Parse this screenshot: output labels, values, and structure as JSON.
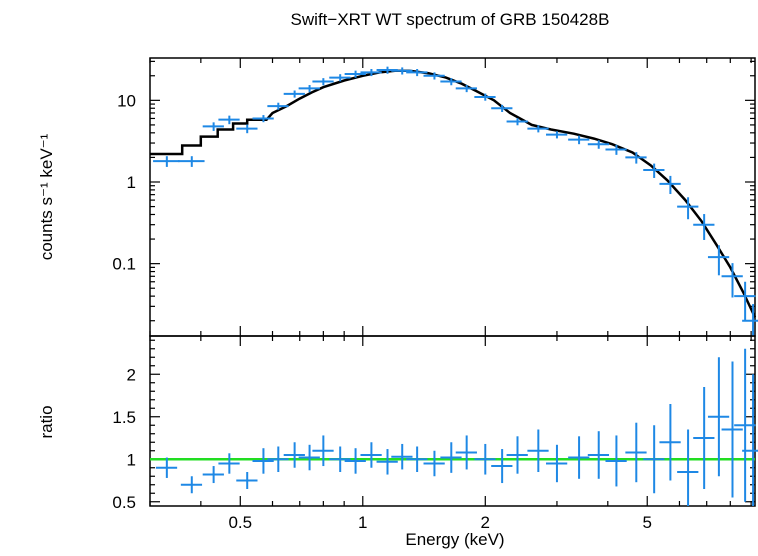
{
  "chart_data": [
    {
      "type": "scatter",
      "title": "Swift−XRT WT spectrum of GRB 150428B",
      "xlabel": "",
      "ylabel": "counts s⁻¹ keV⁻¹",
      "x_scale": "log",
      "y_scale": "log",
      "xlim": [
        0.3,
        9.2
      ],
      "ylim": [
        0.013,
        33
      ],
      "y_ticks": [
        0.1,
        1,
        10
      ],
      "y_tick_labels": [
        "0.1",
        "1",
        "10"
      ],
      "series": [
        {
          "role": "data",
          "color": "#1E88E5",
          "x": [
            0.33,
            0.38,
            0.43,
            0.47,
            0.52,
            0.57,
            0.62,
            0.68,
            0.74,
            0.8,
            0.88,
            0.96,
            1.05,
            1.15,
            1.25,
            1.36,
            1.5,
            1.65,
            1.8,
            2.0,
            2.2,
            2.4,
            2.7,
            3.0,
            3.4,
            3.8,
            4.2,
            4.7,
            5.2,
            5.7,
            6.3,
            6.9,
            7.5,
            8.1,
            8.7,
            9.1
          ],
          "y": [
            1.8,
            1.8,
            4.8,
            5.8,
            4.5,
            6.0,
            8.5,
            12.0,
            14.0,
            17.0,
            19.0,
            21.0,
            22.0,
            23.5,
            23.0,
            22.0,
            20.0,
            17.0,
            14.0,
            11.0,
            8.0,
            5.5,
            4.5,
            3.8,
            3.3,
            2.9,
            2.5,
            2.0,
            1.4,
            0.95,
            0.5,
            0.3,
            0.12,
            0.07,
            0.04,
            0.02
          ],
          "x_err": [
            0.025,
            0.025,
            0.02,
            0.02,
            0.02,
            0.02,
            0.02,
            0.02,
            0.02,
            0.02,
            0.02,
            0.02,
            0.02,
            0.02,
            0.02,
            0.02,
            0.02,
            0.02,
            0.02,
            0.02,
            0.02,
            0.02,
            0.02,
            0.02,
            0.02,
            0.02,
            0.02,
            0.02,
            0.02,
            0.02,
            0.02,
            0.02,
            0.02,
            0.02,
            0.02,
            0.02
          ],
          "y_err_frac": [
            0.15,
            0.15,
            0.12,
            0.12,
            0.12,
            0.1,
            0.1,
            0.1,
            0.1,
            0.1,
            0.1,
            0.1,
            0.1,
            0.1,
            0.1,
            0.1,
            0.1,
            0.1,
            0.1,
            0.1,
            0.1,
            0.1,
            0.1,
            0.1,
            0.12,
            0.12,
            0.14,
            0.16,
            0.2,
            0.25,
            0.3,
            0.35,
            0.4,
            0.45,
            0.5,
            0.6
          ]
        },
        {
          "role": "model",
          "color": "#000000",
          "x": [
            0.3,
            0.36,
            0.36,
            0.4,
            0.4,
            0.44,
            0.44,
            0.48,
            0.48,
            0.52,
            0.52,
            0.58,
            0.6,
            0.65,
            0.7,
            0.75,
            0.8,
            0.9,
            1.0,
            1.1,
            1.2,
            1.3,
            1.45,
            1.6,
            1.75,
            1.9,
            2.1,
            2.3,
            2.6,
            2.9,
            3.3,
            3.7,
            4.1,
            4.6,
            5.1,
            5.6,
            6.2,
            6.8,
            7.4,
            8.0,
            8.6,
            9.2
          ],
          "y": [
            2.2,
            2.2,
            2.8,
            2.8,
            3.6,
            3.6,
            4.4,
            4.4,
            5.2,
            5.2,
            5.8,
            5.8,
            7.0,
            8.5,
            10.5,
            12.5,
            14.5,
            17.5,
            20.0,
            22.0,
            23.0,
            23.0,
            21.5,
            19.0,
            16.0,
            13.0,
            10.0,
            7.0,
            5.0,
            4.4,
            3.9,
            3.4,
            2.9,
            2.3,
            1.6,
            1.05,
            0.6,
            0.33,
            0.17,
            0.09,
            0.045,
            0.022
          ]
        }
      ]
    },
    {
      "type": "scatter",
      "xlabel": "Energy (keV)",
      "ylabel": "ratio",
      "x_scale": "log",
      "y_scale": "linear",
      "xlim": [
        0.3,
        9.2
      ],
      "ylim": [
        0.45,
        2.45
      ],
      "x_ticks": [
        0.5,
        1,
        2,
        5
      ],
      "x_tick_labels": [
        "0.5",
        "1",
        "2",
        "5"
      ],
      "y_ticks": [
        0.5,
        1,
        1.5,
        2
      ],
      "y_tick_labels": [
        "0.5",
        "1",
        "1.5",
        "2"
      ],
      "reference_line": {
        "y": 1.0,
        "color": "#22DD22"
      },
      "series": [
        {
          "role": "ratio",
          "color": "#1E88E5",
          "x": [
            0.33,
            0.38,
            0.43,
            0.47,
            0.52,
            0.57,
            0.62,
            0.68,
            0.74,
            0.8,
            0.88,
            0.96,
            1.05,
            1.15,
            1.25,
            1.36,
            1.5,
            1.65,
            1.8,
            2.0,
            2.2,
            2.4,
            2.7,
            3.0,
            3.4,
            3.8,
            4.2,
            4.7,
            5.2,
            5.7,
            6.3,
            6.9,
            7.5,
            8.1,
            8.7,
            9.1
          ],
          "y": [
            0.9,
            0.7,
            0.82,
            0.95,
            0.75,
            0.98,
            1.0,
            1.05,
            1.02,
            1.1,
            1.0,
            0.98,
            1.05,
            0.97,
            1.03,
            1.0,
            0.95,
            1.02,
            1.08,
            1.0,
            0.92,
            1.05,
            1.1,
            0.95,
            1.02,
            1.05,
            0.98,
            1.08,
            1.0,
            1.2,
            0.85,
            1.25,
            1.5,
            1.35,
            1.4,
            1.1
          ],
          "y_err": [
            0.12,
            0.1,
            0.1,
            0.12,
            0.1,
            0.15,
            0.15,
            0.15,
            0.15,
            0.18,
            0.15,
            0.15,
            0.15,
            0.15,
            0.15,
            0.15,
            0.15,
            0.18,
            0.2,
            0.18,
            0.2,
            0.22,
            0.25,
            0.22,
            0.25,
            0.28,
            0.3,
            0.35,
            0.4,
            0.45,
            0.5,
            0.6,
            0.7,
            0.8,
            0.9,
            0.9
          ]
        }
      ]
    }
  ]
}
